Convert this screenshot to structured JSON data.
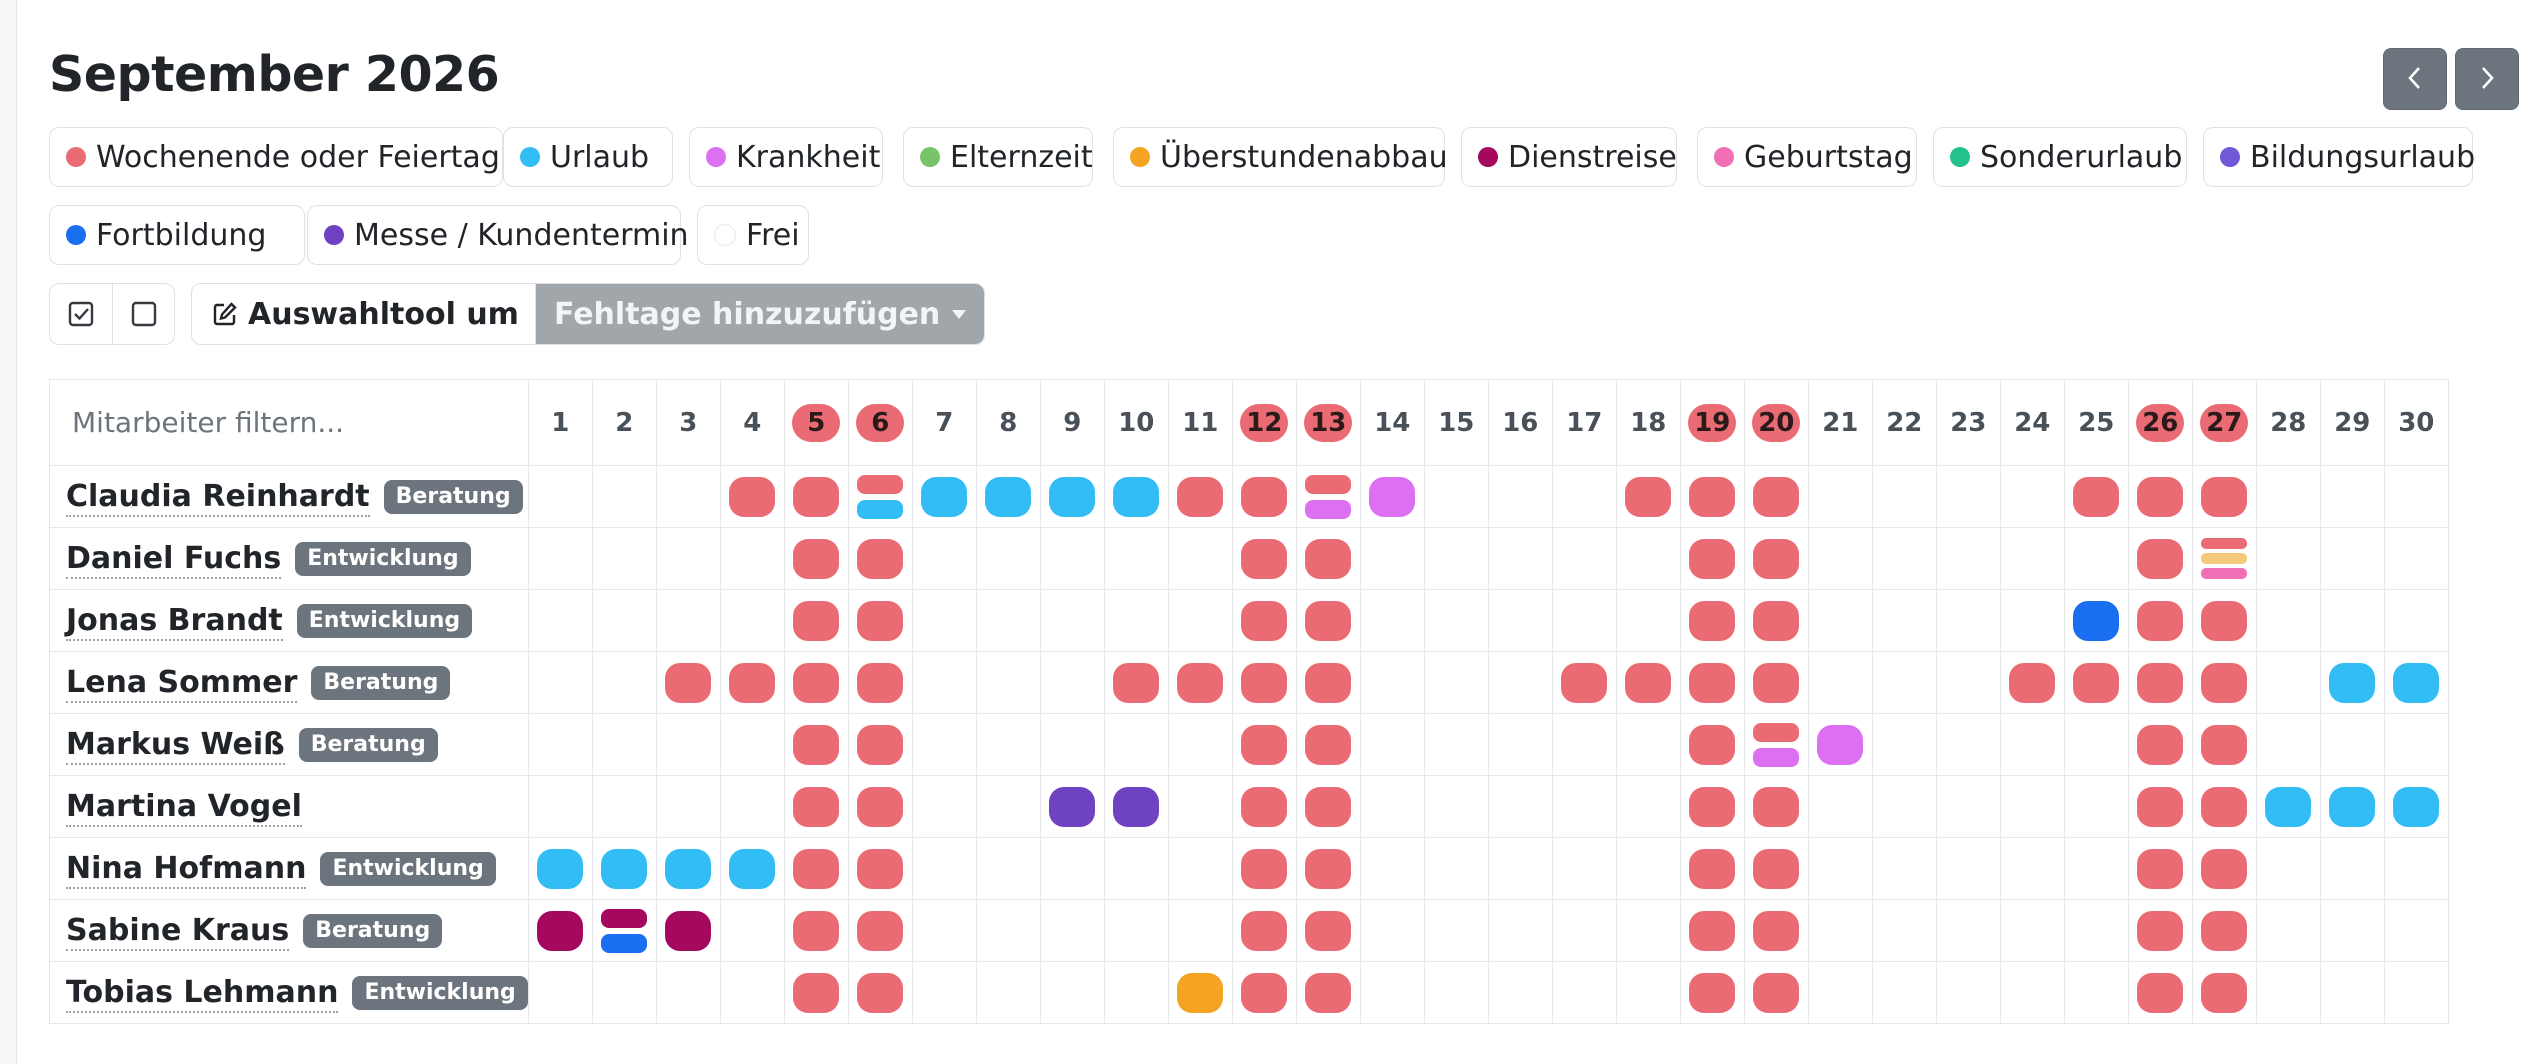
{
  "title": "September 2026",
  "nav": {
    "prev_label": "‹",
    "next_label": "›"
  },
  "legend": [
    {
      "label": "Wochenende oder Feiertag",
      "color": "#ea6b73"
    },
    {
      "label": "Urlaub",
      "color": "#33bdf5"
    },
    {
      "label": "Krankheit",
      "color": "#dc6ff2"
    },
    {
      "label": "Elternzeit",
      "color": "#77c46a"
    },
    {
      "label": "Überstundenabbau",
      "color": "#f4a422"
    },
    {
      "label": "Dienstreise",
      "color": "#a4095e"
    },
    {
      "label": "Geburtstag",
      "color": "#f06fb5"
    },
    {
      "label": "Sonderurlaub",
      "color": "#23c28d"
    },
    {
      "label": "Bildungsurlaub",
      "color": "#7058d6"
    },
    {
      "label": "Fortbildung",
      "color": "#1a6ff0"
    },
    {
      "label": "Messe / Kundentermin",
      "color": "#6f42c1"
    },
    {
      "label": "Frei",
      "color": "#ffffff"
    }
  ],
  "toolbar": {
    "select_all_icon": "check-square-icon",
    "select_none_icon": "square-icon",
    "tool_icon": "pencil-square-icon",
    "tool_label": "Auswahltool um",
    "dropdown_label": "Fehltage hinzuzufügen"
  },
  "filter": {
    "placeholder": "Mitarbeiter filtern..."
  },
  "weekend_days": [
    5,
    6,
    12,
    13,
    19,
    20,
    26,
    27
  ],
  "days": [
    1,
    2,
    3,
    4,
    5,
    6,
    7,
    8,
    9,
    10,
    11,
    12,
    13,
    14,
    15,
    16,
    17,
    18,
    19,
    20,
    21,
    22,
    23,
    24,
    25,
    26,
    27,
    28,
    29,
    30
  ],
  "employees": [
    {
      "name": "Claudia Reinhardt",
      "dept": "Beratung",
      "entries": {
        "4": [
          "#ea6b73"
        ],
        "5": [
          "#ea6b73"
        ],
        "6": [
          "#ea6b73",
          "#33bdf5"
        ],
        "7": [
          "#33bdf5"
        ],
        "8": [
          "#33bdf5"
        ],
        "9": [
          "#33bdf5"
        ],
        "10": [
          "#33bdf5"
        ],
        "11": [
          "#ea6b73"
        ],
        "12": [
          "#ea6b73"
        ],
        "13": [
          "#ea6b73",
          "#dc6ff2"
        ],
        "14": [
          "#dc6ff2"
        ],
        "18": [
          "#ea6b73"
        ],
        "19": [
          "#ea6b73"
        ],
        "20": [
          "#ea6b73"
        ],
        "25": [
          "#ea6b73"
        ],
        "26": [
          "#ea6b73"
        ],
        "27": [
          "#ea6b73"
        ]
      }
    },
    {
      "name": "Daniel Fuchs",
      "dept": "Entwicklung",
      "entries": {
        "5": [
          "#ea6b73"
        ],
        "6": [
          "#ea6b73"
        ],
        "12": [
          "#ea6b73"
        ],
        "13": [
          "#ea6b73"
        ],
        "19": [
          "#ea6b73"
        ],
        "20": [
          "#ea6b73"
        ],
        "26": [
          "#ea6b73"
        ],
        "27": [
          "#ea6b73",
          "#f5c97a",
          "#f06fb5"
        ]
      }
    },
    {
      "name": "Jonas Brandt",
      "dept": "Entwicklung",
      "entries": {
        "5": [
          "#ea6b73"
        ],
        "6": [
          "#ea6b73"
        ],
        "12": [
          "#ea6b73"
        ],
        "13": [
          "#ea6b73"
        ],
        "19": [
          "#ea6b73"
        ],
        "20": [
          "#ea6b73"
        ],
        "25": [
          "#1a6ff0"
        ],
        "26": [
          "#ea6b73"
        ],
        "27": [
          "#ea6b73"
        ]
      }
    },
    {
      "name": "Lena Sommer",
      "dept": "Beratung",
      "entries": {
        "3": [
          "#ea6b73"
        ],
        "4": [
          "#ea6b73"
        ],
        "5": [
          "#ea6b73"
        ],
        "6": [
          "#ea6b73"
        ],
        "10": [
          "#ea6b73"
        ],
        "11": [
          "#ea6b73"
        ],
        "12": [
          "#ea6b73"
        ],
        "13": [
          "#ea6b73"
        ],
        "17": [
          "#ea6b73"
        ],
        "18": [
          "#ea6b73"
        ],
        "19": [
          "#ea6b73"
        ],
        "20": [
          "#ea6b73"
        ],
        "24": [
          "#ea6b73"
        ],
        "25": [
          "#ea6b73"
        ],
        "26": [
          "#ea6b73"
        ],
        "27": [
          "#ea6b73"
        ],
        "29": [
          "#33bdf5"
        ],
        "30": [
          "#33bdf5"
        ]
      }
    },
    {
      "name": "Markus Weiß",
      "dept": "Beratung",
      "entries": {
        "5": [
          "#ea6b73"
        ],
        "6": [
          "#ea6b73"
        ],
        "12": [
          "#ea6b73"
        ],
        "13": [
          "#ea6b73"
        ],
        "19": [
          "#ea6b73"
        ],
        "20": [
          "#ea6b73",
          "#dc6ff2"
        ],
        "21": [
          "#dc6ff2"
        ],
        "26": [
          "#ea6b73"
        ],
        "27": [
          "#ea6b73"
        ]
      }
    },
    {
      "name": "Martina Vogel",
      "dept": "",
      "entries": {
        "5": [
          "#ea6b73"
        ],
        "6": [
          "#ea6b73"
        ],
        "9": [
          "#6f42c1"
        ],
        "10": [
          "#6f42c1"
        ],
        "12": [
          "#ea6b73"
        ],
        "13": [
          "#ea6b73"
        ],
        "19": [
          "#ea6b73"
        ],
        "20": [
          "#ea6b73"
        ],
        "26": [
          "#ea6b73"
        ],
        "27": [
          "#ea6b73"
        ],
        "28": [
          "#33bdf5"
        ],
        "29": [
          "#33bdf5"
        ],
        "30": [
          "#33bdf5"
        ]
      }
    },
    {
      "name": "Nina Hofmann",
      "dept": "Entwicklung",
      "entries": {
        "1": [
          "#33bdf5"
        ],
        "2": [
          "#33bdf5"
        ],
        "3": [
          "#33bdf5"
        ],
        "4": [
          "#33bdf5"
        ],
        "5": [
          "#ea6b73"
        ],
        "6": [
          "#ea6b73"
        ],
        "12": [
          "#ea6b73"
        ],
        "13": [
          "#ea6b73"
        ],
        "19": [
          "#ea6b73"
        ],
        "20": [
          "#ea6b73"
        ],
        "26": [
          "#ea6b73"
        ],
        "27": [
          "#ea6b73"
        ]
      }
    },
    {
      "name": "Sabine Kraus",
      "dept": "Beratung",
      "entries": {
        "1": [
          "#a4095e"
        ],
        "2": [
          "#a4095e",
          "#1a6ff0"
        ],
        "3": [
          "#a4095e"
        ],
        "5": [
          "#ea6b73"
        ],
        "6": [
          "#ea6b73"
        ],
        "12": [
          "#ea6b73"
        ],
        "13": [
          "#ea6b73"
        ],
        "19": [
          "#ea6b73"
        ],
        "20": [
          "#ea6b73"
        ],
        "26": [
          "#ea6b73"
        ],
        "27": [
          "#ea6b73"
        ]
      }
    },
    {
      "name": "Tobias Lehmann",
      "dept": "Entwicklung",
      "entries": {
        "5": [
          "#ea6b73"
        ],
        "6": [
          "#ea6b73"
        ],
        "11": [
          "#f4a422"
        ],
        "12": [
          "#ea6b73"
        ],
        "13": [
          "#ea6b73"
        ],
        "19": [
          "#ea6b73"
        ],
        "20": [
          "#ea6b73"
        ],
        "26": [
          "#ea6b73"
        ],
        "27": [
          "#ea6b73"
        ]
      }
    }
  ]
}
